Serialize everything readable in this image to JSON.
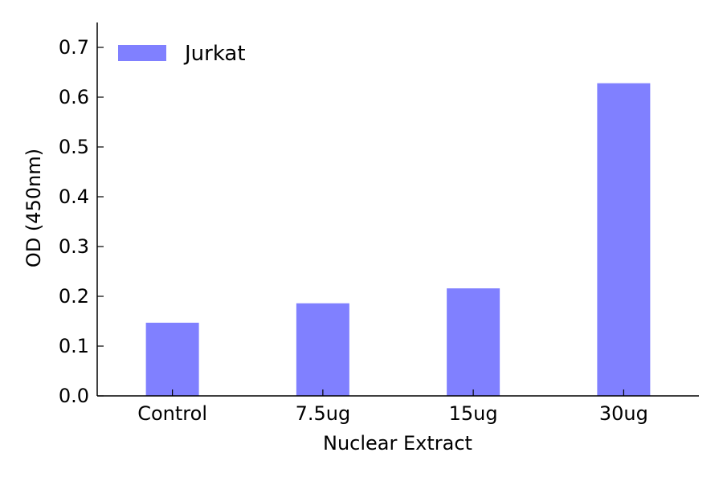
{
  "chart_data": {
    "type": "bar",
    "categories": [
      "Control",
      "7.5ug",
      "15ug",
      "30ug"
    ],
    "series": [
      {
        "name": "Jurkat",
        "values": [
          0.147,
          0.186,
          0.216,
          0.628
        ]
      }
    ],
    "xlabel": "Nuclear Extract",
    "ylabel": "OD (450nm)",
    "ylim": [
      0,
      0.75
    ],
    "yticks": [
      "0.0",
      "0.1",
      "0.2",
      "0.3",
      "0.4",
      "0.5",
      "0.6",
      "0.7"
    ],
    "grid": false,
    "legend_position": "top-left",
    "colors": {
      "bar": "#8080ff",
      "axis": "#000000"
    }
  }
}
